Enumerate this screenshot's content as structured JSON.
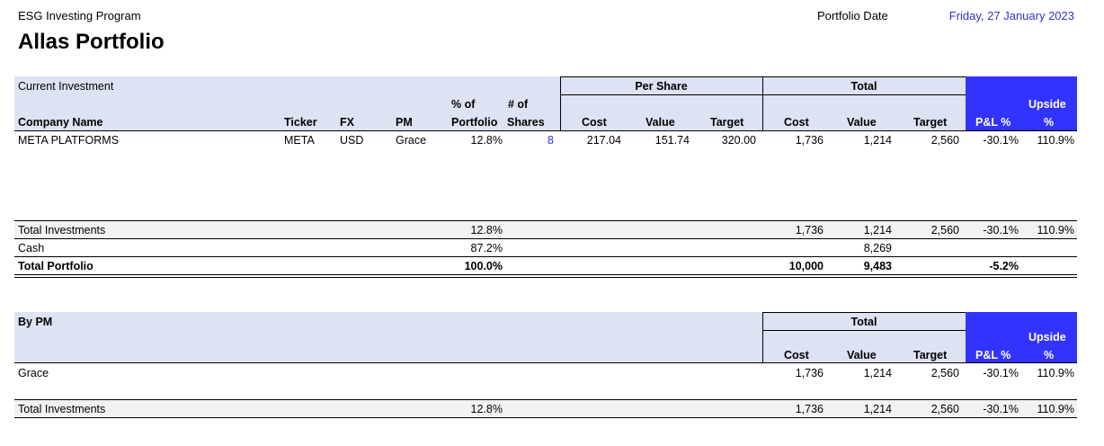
{
  "header": {
    "program": "ESG Investing Program",
    "title": "Allas Portfolio",
    "date_label": "Portfolio Date",
    "date_value": "Friday, 27 January 2023"
  },
  "investments": {
    "section_label": "Current Investment",
    "group_per_share": "Per Share",
    "group_total": "Total",
    "columns": {
      "company": "Company Name",
      "ticker": "Ticker",
      "fx": "FX",
      "pm": "PM",
      "pct_top": "% of",
      "pct_bottom": "Portfolio",
      "shares_top": "# of",
      "shares_bottom": "Shares",
      "ps_cost": "Cost",
      "ps_value": "Value",
      "ps_target": "Target",
      "t_cost": "Cost",
      "t_value": "Value",
      "t_target": "Target",
      "pnl": "P&L %",
      "upside_top": "Upside",
      "upside_bottom": "%"
    },
    "rows": [
      {
        "company": "META PLATFORMS",
        "ticker": "META",
        "fx": "USD",
        "pm": "Grace",
        "pct": "12.8%",
        "shares": "8",
        "ps_cost": "217.04",
        "ps_value": "151.74",
        "ps_target": "320.00",
        "t_cost": "1,736",
        "t_value": "1,214",
        "t_target": "2,560",
        "pnl": "-30.1%",
        "upside": "110.9%"
      }
    ],
    "total_investments": {
      "label": "Total Investments",
      "pct": "12.8%",
      "t_cost": "1,736",
      "t_value": "1,214",
      "t_target": "2,560",
      "pnl": "-30.1%",
      "upside": "110.9%"
    },
    "cash": {
      "label": "Cash",
      "pct": "87.2%",
      "t_value": "8,269"
    },
    "total_portfolio": {
      "label": "Total Portfolio",
      "pct": "100.0%",
      "t_cost": "10,000",
      "t_value": "9,483",
      "pnl": "-5.2%"
    }
  },
  "by_pm": {
    "section_label": "By PM",
    "group_total": "Total",
    "columns": {
      "cost": "Cost",
      "value": "Value",
      "target": "Target",
      "pnl": "P&L %",
      "upside_top": "Upside",
      "upside_bottom": "%"
    },
    "rows": [
      {
        "name": "Grace",
        "cost": "1,736",
        "value": "1,214",
        "target": "2,560",
        "pnl": "-30.1%",
        "upside": "110.9%"
      }
    ],
    "total": {
      "label": "Total Investments",
      "pct": "12.8%",
      "cost": "1,736",
      "value": "1,214",
      "target": "2,560",
      "pnl": "-30.1%",
      "upside": "110.9%"
    }
  },
  "colors": {
    "header_band": "#dde3f3",
    "highlight_header": "#3333ff",
    "link_text": "#3333cc",
    "total_row": "#f2f2f2"
  }
}
